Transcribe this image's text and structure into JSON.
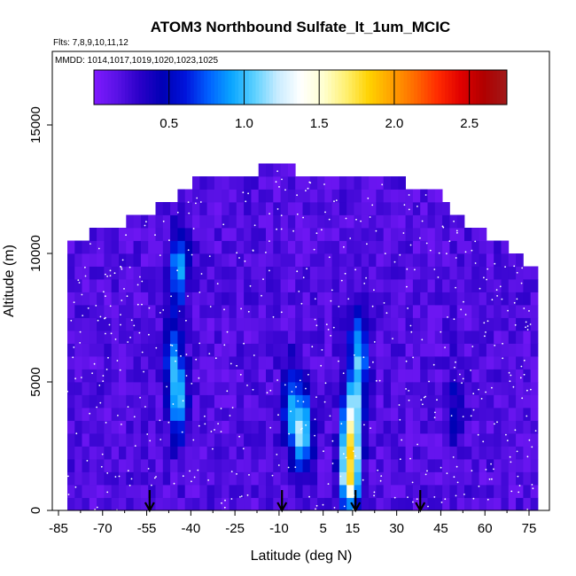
{
  "chart_data": {
    "type": "heatmap",
    "title": "ATOM3 Northbound Sulfate_lt_1um_MCIC",
    "subtitle_flights": "Flts: 7,8,9,10,11,12",
    "subtitle_dates": "MMDD: 1014,1017,1019,1020,1023,1025",
    "xlabel": "Latitude (deg N)",
    "ylabel": "Altitude (m)",
    "xlim": [
      -85,
      85
    ],
    "ylim": [
      0,
      18000
    ],
    "x_ticks": [
      -85,
      -70,
      -55,
      -40,
      -25,
      -10,
      5,
      15,
      30,
      45,
      60,
      75
    ],
    "x_tick_labels": [
      "-85",
      "-70",
      "-55",
      "-40",
      "-25",
      "-10",
      "5",
      "15",
      "30",
      "45",
      "60",
      "75"
    ],
    "y_ticks": [
      0,
      5000,
      10000,
      15000
    ],
    "y_tick_labels": [
      "0",
      "5000",
      "10000",
      "15000"
    ],
    "colorbar": {
      "range": [
        0,
        2.75
      ],
      "ticks": [
        0.5,
        1.0,
        1.5,
        2.0,
        2.5
      ],
      "tick_labels": [
        "0.5",
        "1.0",
        "1.5",
        "2.0",
        "2.5"
      ],
      "colors": [
        "#7f1aff",
        "#5a12e6",
        "#2a00c8",
        "#0000b4",
        "#0014dc",
        "#0060ff",
        "#0aa6ff",
        "#5cd0ff",
        "#c8ecff",
        "#ffffff",
        "#ffffd0",
        "#fff070",
        "#ffd200",
        "#ffa000",
        "#ff6a00",
        "#ff2a00",
        "#e00000",
        "#b00000",
        "#a01a1a"
      ]
    },
    "arrow_latitudes": [
      -54,
      -9,
      16,
      38
    ],
    "altitude_bin_m": 500,
    "latitude_bin_deg": 2.5,
    "profile_envelope": [
      {
        "lat": -82,
        "top": 10000
      },
      {
        "lat": -75,
        "top": 10500
      },
      {
        "lat": -65,
        "top": 10800
      },
      {
        "lat": -55,
        "top": 11300
      },
      {
        "lat": -45,
        "top": 12000
      },
      {
        "lat": -35,
        "top": 12800
      },
      {
        "lat": -20,
        "top": 12800
      },
      {
        "lat": -12,
        "top": 13300
      },
      {
        "lat": 0,
        "top": 12800
      },
      {
        "lat": 20,
        "top": 12800
      },
      {
        "lat": 42,
        "top": 12300
      },
      {
        "lat": 50,
        "top": 11300
      },
      {
        "lat": 60,
        "top": 10500
      },
      {
        "lat": 70,
        "top": 9800
      },
      {
        "lat": 78,
        "top": 9000
      }
    ],
    "hotspots": [
      {
        "lat": 14,
        "alt": 1500,
        "value": 1.6
      },
      {
        "lat": 15,
        "alt": 3500,
        "value": 1.2
      },
      {
        "lat": 17,
        "alt": 6000,
        "value": 1.0
      },
      {
        "lat": -2,
        "alt": 3000,
        "value": 1.1
      },
      {
        "lat": -6,
        "alt": 4200,
        "value": 0.8
      },
      {
        "lat": -44,
        "alt": 9500,
        "value": 0.9
      },
      {
        "lat": -44,
        "alt": 4200,
        "value": 0.85
      },
      {
        "lat": -46,
        "alt": 6000,
        "value": 0.7
      },
      {
        "lat": 50,
        "alt": 4000,
        "value": 0.45
      }
    ],
    "background_value": 0.18
  }
}
